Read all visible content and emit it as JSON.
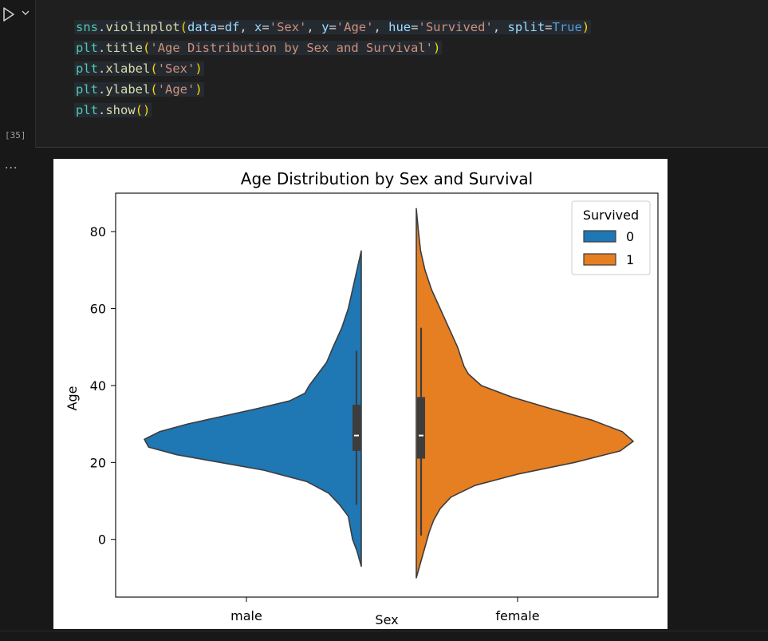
{
  "cell": {
    "execution_count": "[35]",
    "output_menu": "...",
    "code_lines": [
      "sns.violinplot(data=df, x='Sex', y='Age', hue='Survived', split=True)",
      "plt.title('Age Distribution by Sex and Survival')",
      "plt.xlabel('Sex')",
      "plt.ylabel('Age')",
      "plt.show()"
    ]
  },
  "icons": {
    "run": "play-triangle-icon",
    "chevron": "chevron-down-icon"
  },
  "chart_data": {
    "type": "violin",
    "title": "Age Distribution by Sex and Survival",
    "xlabel": "Sex",
    "ylabel": "Age",
    "categories": [
      "male",
      "female"
    ],
    "ylim": [
      -15,
      90
    ],
    "yticks": [
      0,
      20,
      40,
      60,
      80
    ],
    "legend": {
      "title": "Survived",
      "entries": [
        "0",
        "1"
      ],
      "placement": "top-right"
    },
    "series": [
      {
        "name": "0",
        "category": "male",
        "side": "left",
        "color": "#1f77b4",
        "kde_extent": [
          -7,
          75
        ],
        "density_profile": [
          [
            -7,
            0.0
          ],
          [
            -3,
            0.02
          ],
          [
            0,
            0.04
          ],
          [
            3,
            0.05
          ],
          [
            6,
            0.06
          ],
          [
            9,
            0.1
          ],
          [
            12,
            0.15
          ],
          [
            15,
            0.25
          ],
          [
            18,
            0.45
          ],
          [
            20,
            0.65
          ],
          [
            22,
            0.85
          ],
          [
            24,
            0.98
          ],
          [
            26,
            1.0
          ],
          [
            28,
            0.93
          ],
          [
            30,
            0.8
          ],
          [
            32,
            0.64
          ],
          [
            34,
            0.48
          ],
          [
            36,
            0.33
          ],
          [
            38,
            0.26
          ],
          [
            40,
            0.24
          ],
          [
            43,
            0.2
          ],
          [
            46,
            0.16
          ],
          [
            50,
            0.13
          ],
          [
            55,
            0.09
          ],
          [
            60,
            0.06
          ],
          [
            65,
            0.04
          ],
          [
            70,
            0.02
          ],
          [
            75,
            0.0
          ]
        ],
        "box": {
          "q1": 23,
          "median": 27,
          "q3": 35,
          "whisker_low": 9,
          "whisker_high": 49
        }
      },
      {
        "name": "1",
        "category": "female",
        "side": "right",
        "color": "#e67e22",
        "kde_extent": [
          -10,
          86
        ],
        "density_profile": [
          [
            -10,
            0.0
          ],
          [
            -6,
            0.02
          ],
          [
            -2,
            0.04
          ],
          [
            2,
            0.06
          ],
          [
            5,
            0.08
          ],
          [
            8,
            0.11
          ],
          [
            11,
            0.16
          ],
          [
            14,
            0.27
          ],
          [
            17,
            0.47
          ],
          [
            20,
            0.73
          ],
          [
            23,
            0.94
          ],
          [
            25.5,
            1.0
          ],
          [
            28,
            0.95
          ],
          [
            31,
            0.81
          ],
          [
            34,
            0.62
          ],
          [
            37,
            0.44
          ],
          [
            40,
            0.3
          ],
          [
            43,
            0.24
          ],
          [
            45,
            0.22
          ],
          [
            50,
            0.19
          ],
          [
            55,
            0.15
          ],
          [
            60,
            0.11
          ],
          [
            65,
            0.07
          ],
          [
            70,
            0.04
          ],
          [
            75,
            0.02
          ],
          [
            80,
            0.01
          ],
          [
            86,
            0.0
          ]
        ],
        "box": {
          "q1": 21,
          "median": 27,
          "q3": 37,
          "whisker_low": 1,
          "whisker_high": 55
        }
      }
    ]
  }
}
